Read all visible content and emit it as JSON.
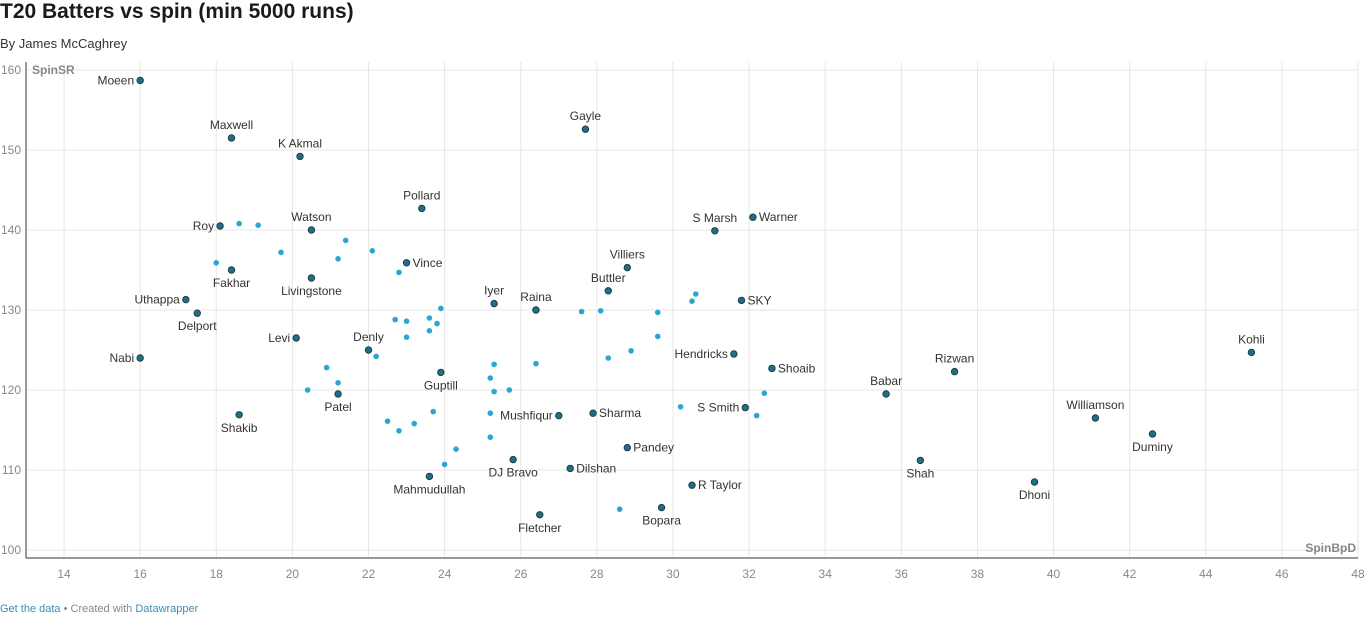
{
  "title": "T20 Batters vs spin (min 5000 runs)",
  "byline": "By James McCaghrey",
  "footer": {
    "get_data": "Get the data",
    "separator": " • Created with ",
    "tool": "Datawrapper"
  },
  "colors": {
    "labeled": "#1f6f8b",
    "unlabeled": "#2aa7d0",
    "outline": "#1e3e4b",
    "grid": "#e6e6e6"
  },
  "chart_data": {
    "type": "scatter",
    "title": "T20 Batters vs spin (min 5000 runs)",
    "xlabel": "SpinBpD",
    "ylabel": "SpinSR",
    "xlim": [
      13,
      48
    ],
    "ylim": [
      99,
      161
    ],
    "xticks": [
      14,
      16,
      18,
      20,
      22,
      24,
      26,
      28,
      30,
      32,
      34,
      36,
      38,
      40,
      42,
      44,
      46,
      48
    ],
    "yticks": [
      100,
      110,
      120,
      130,
      140,
      150,
      160
    ],
    "grid": true,
    "labeled_points": [
      {
        "name": "Moeen",
        "x": 16.0,
        "y": 158.7,
        "pos": "left"
      },
      {
        "name": "Maxwell",
        "x": 18.4,
        "y": 151.5,
        "pos": "above"
      },
      {
        "name": "K Akmal",
        "x": 20.2,
        "y": 149.2,
        "pos": "above"
      },
      {
        "name": "Gayle",
        "x": 27.7,
        "y": 152.6,
        "pos": "above"
      },
      {
        "name": "Pollard",
        "x": 23.4,
        "y": 142.7,
        "pos": "above"
      },
      {
        "name": "Roy",
        "x": 18.1,
        "y": 140.5,
        "pos": "left"
      },
      {
        "name": "Watson",
        "x": 20.5,
        "y": 140.0,
        "pos": "above"
      },
      {
        "name": "S Marsh",
        "x": 31.1,
        "y": 139.9,
        "pos": "above"
      },
      {
        "name": "Warner",
        "x": 32.1,
        "y": 141.6,
        "pos": "right"
      },
      {
        "name": "Fakhar",
        "x": 18.4,
        "y": 135.0,
        "pos": "below"
      },
      {
        "name": "Livingstone",
        "x": 20.5,
        "y": 134.0,
        "pos": "below"
      },
      {
        "name": "Vince",
        "x": 23.0,
        "y": 135.9,
        "pos": "right"
      },
      {
        "name": "Villiers",
        "x": 28.8,
        "y": 135.3,
        "pos": "above"
      },
      {
        "name": "Buttler",
        "x": 28.3,
        "y": 132.4,
        "pos": "above"
      },
      {
        "name": "Iyer",
        "x": 25.3,
        "y": 130.8,
        "pos": "above"
      },
      {
        "name": "Raina",
        "x": 26.4,
        "y": 130.0,
        "pos": "above"
      },
      {
        "name": "SKY",
        "x": 31.8,
        "y": 131.2,
        "pos": "right"
      },
      {
        "name": "Uthappa",
        "x": 17.2,
        "y": 131.3,
        "pos": "left"
      },
      {
        "name": "Delport",
        "x": 17.5,
        "y": 129.6,
        "pos": "below"
      },
      {
        "name": "Levi",
        "x": 20.1,
        "y": 126.5,
        "pos": "left"
      },
      {
        "name": "Denly",
        "x": 22.0,
        "y": 125.0,
        "pos": "above"
      },
      {
        "name": "Nabi",
        "x": 16.0,
        "y": 124.0,
        "pos": "left"
      },
      {
        "name": "Hendricks",
        "x": 31.6,
        "y": 124.5,
        "pos": "left"
      },
      {
        "name": "Shoaib",
        "x": 32.6,
        "y": 122.7,
        "pos": "right"
      },
      {
        "name": "Kohli",
        "x": 45.2,
        "y": 124.7,
        "pos": "above"
      },
      {
        "name": "Rizwan",
        "x": 37.4,
        "y": 122.3,
        "pos": "above"
      },
      {
        "name": "Guptill",
        "x": 23.9,
        "y": 122.2,
        "pos": "below"
      },
      {
        "name": "Babar",
        "x": 35.6,
        "y": 119.5,
        "pos": "above"
      },
      {
        "name": "Patel",
        "x": 21.2,
        "y": 119.5,
        "pos": "below"
      },
      {
        "name": "S Smith",
        "x": 31.9,
        "y": 117.8,
        "pos": "left"
      },
      {
        "name": "Mushfiqur",
        "x": 27.0,
        "y": 116.8,
        "pos": "left"
      },
      {
        "name": "Sharma",
        "x": 27.9,
        "y": 117.1,
        "pos": "right"
      },
      {
        "name": "Shakib",
        "x": 18.6,
        "y": 116.9,
        "pos": "below"
      },
      {
        "name": "Williamson",
        "x": 41.1,
        "y": 116.5,
        "pos": "above"
      },
      {
        "name": "Duminy",
        "x": 42.6,
        "y": 114.5,
        "pos": "below"
      },
      {
        "name": "Pandey",
        "x": 28.8,
        "y": 112.8,
        "pos": "right"
      },
      {
        "name": "DJ Bravo",
        "x": 25.8,
        "y": 111.3,
        "pos": "below"
      },
      {
        "name": "Shah",
        "x": 36.5,
        "y": 111.2,
        "pos": "below"
      },
      {
        "name": "Dilshan",
        "x": 27.3,
        "y": 110.2,
        "pos": "right"
      },
      {
        "name": "Mahmudullah",
        "x": 23.6,
        "y": 109.2,
        "pos": "below"
      },
      {
        "name": "Dhoni",
        "x": 39.5,
        "y": 108.5,
        "pos": "below"
      },
      {
        "name": "R Taylor",
        "x": 30.5,
        "y": 108.1,
        "pos": "right"
      },
      {
        "name": "Bopara",
        "x": 29.7,
        "y": 105.3,
        "pos": "below"
      },
      {
        "name": "Fletcher",
        "x": 26.5,
        "y": 104.4,
        "pos": "below"
      }
    ],
    "unlabeled_points": [
      [
        18.6,
        140.8
      ],
      [
        19.1,
        140.6
      ],
      [
        18.0,
        135.9
      ],
      [
        19.7,
        137.2
      ],
      [
        21.4,
        138.7
      ],
      [
        21.2,
        136.4
      ],
      [
        22.1,
        137.4
      ],
      [
        22.8,
        134.7
      ],
      [
        23.9,
        130.2
      ],
      [
        22.7,
        128.8
      ],
      [
        23.0,
        128.6
      ],
      [
        23.6,
        129.0
      ],
      [
        23.8,
        128.3
      ],
      [
        23.6,
        127.4
      ],
      [
        23.0,
        126.6
      ],
      [
        22.2,
        124.2
      ],
      [
        20.9,
        122.8
      ],
      [
        21.2,
        120.9
      ],
      [
        20.4,
        120.0
      ],
      [
        25.3,
        123.2
      ],
      [
        25.2,
        121.5
      ],
      [
        25.3,
        119.8
      ],
      [
        25.7,
        120.0
      ],
      [
        26.4,
        123.3
      ],
      [
        27.6,
        129.8
      ],
      [
        28.1,
        129.9
      ],
      [
        29.6,
        129.7
      ],
      [
        28.3,
        124.0
      ],
      [
        28.9,
        124.9
      ],
      [
        29.6,
        126.7
      ],
      [
        30.5,
        131.1
      ],
      [
        30.6,
        132.0
      ],
      [
        22.5,
        116.1
      ],
      [
        22.8,
        114.9
      ],
      [
        23.2,
        115.8
      ],
      [
        23.7,
        117.3
      ],
      [
        24.3,
        112.6
      ],
      [
        24.0,
        110.7
      ],
      [
        25.2,
        117.1
      ],
      [
        25.2,
        114.1
      ],
      [
        30.2,
        117.9
      ],
      [
        32.2,
        116.8
      ],
      [
        32.4,
        119.6
      ],
      [
        28.6,
        105.1
      ]
    ]
  }
}
